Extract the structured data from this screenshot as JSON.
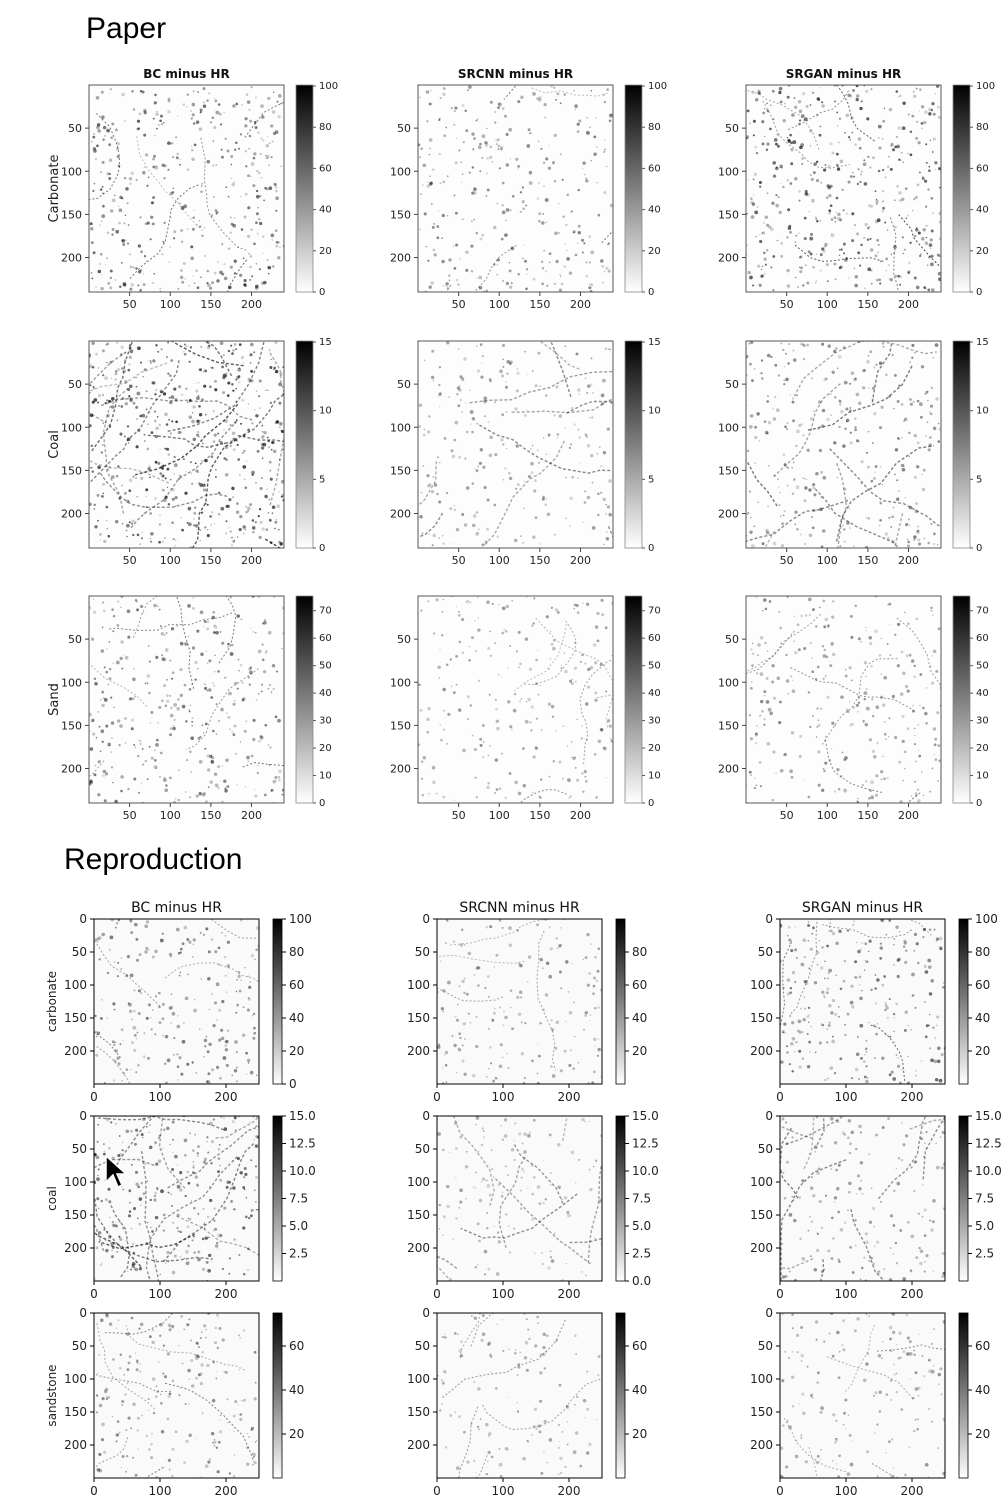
{
  "sections": [
    {
      "heading": "Paper",
      "style": "paper",
      "column_titles": [
        "BC minus HR",
        "SRCNN minus HR",
        "SRGAN minus HR"
      ],
      "rows": [
        {
          "label": "Carbonate",
          "texture": "carbonate",
          "x_ticks": [
            50,
            100,
            150,
            200
          ],
          "y_ticks": [
            50,
            100,
            150,
            200
          ],
          "colorbar": {
            "range": [
              0,
              100
            ],
            "ticks": [
              "0",
              "20",
              "40",
              "60",
              "80",
              "100"
            ]
          }
        },
        {
          "label": "Coal",
          "texture": "coal",
          "x_ticks": [
            50,
            100,
            150,
            200
          ],
          "y_ticks": [
            50,
            100,
            150,
            200
          ],
          "colorbar": {
            "range": [
              0,
              15
            ],
            "ticks": [
              "0",
              "5",
              "10",
              "15"
            ]
          }
        },
        {
          "label": "Sand",
          "texture": "sand",
          "x_ticks": [
            50,
            100,
            150,
            200
          ],
          "y_ticks": [
            50,
            100,
            150,
            200
          ],
          "colorbar": {
            "range": [
              0,
              75
            ],
            "ticks": [
              "0",
              "10",
              "20",
              "30",
              "40",
              "50",
              "60",
              "70"
            ]
          }
        }
      ]
    },
    {
      "heading": "Reproduction",
      "style": "repro",
      "column_titles": [
        "BC minus HR",
        "SRCNN minus HR",
        "SRGAN minus HR"
      ],
      "rows": [
        {
          "label": "carbonate",
          "texture": "carbonate",
          "x_ticks": [
            0,
            100,
            200
          ],
          "y_ticks": [
            0,
            50,
            100,
            150,
            200
          ],
          "colorbars": [
            {
              "range": [
                0,
                100
              ],
              "ticks": [
                "0",
                "20",
                "40",
                "60",
                "80",
                "100"
              ]
            },
            {
              "range": [
                0,
                100
              ],
              "ticks": [
                "20",
                "40",
                "60",
                "80"
              ]
            },
            {
              "range": [
                0,
                100
              ],
              "ticks": [
                "20",
                "40",
                "60",
                "80",
                "100"
              ]
            }
          ]
        },
        {
          "label": "coal",
          "texture": "coal",
          "x_ticks": [
            0,
            100,
            200
          ],
          "y_ticks": [
            0,
            50,
            100,
            150,
            200
          ],
          "colorbars": [
            {
              "range": [
                0,
                15
              ],
              "ticks": [
                "2.5",
                "5.0",
                "7.5",
                "10.0",
                "12.5",
                "15.0"
              ]
            },
            {
              "range": [
                0,
                15
              ],
              "ticks": [
                "0.0",
                "2.5",
                "5.0",
                "7.5",
                "10.0",
                "12.5",
                "15.0"
              ]
            },
            {
              "range": [
                0,
                15
              ],
              "ticks": [
                "2.5",
                "5.0",
                "7.5",
                "10.0",
                "12.5",
                "15.0"
              ]
            }
          ]
        },
        {
          "label": "sandstone",
          "texture": "sand",
          "x_ticks": [
            0,
            100,
            200
          ],
          "y_ticks": [
            0,
            50,
            100,
            150,
            200
          ],
          "colorbars": [
            {
              "range": [
                0,
                75
              ],
              "ticks": [
                "20",
                "40",
                "60"
              ]
            },
            {
              "range": [
                0,
                75
              ],
              "ticks": [
                "20",
                "40",
                "60"
              ]
            },
            {
              "range": [
                0,
                75
              ],
              "ticks": [
                "20",
                "40",
                "60"
              ]
            }
          ]
        }
      ]
    }
  ],
  "chart_data": [
    {
      "type": "heatmap",
      "group": "Paper",
      "row": "Carbonate",
      "columns": [
        "BC minus HR",
        "SRCNN minus HR",
        "SRGAN minus HR"
      ],
      "xlim": [
        0,
        240
      ],
      "ylim": [
        240,
        0
      ],
      "colorbar_range": [
        0,
        100
      ],
      "colormap": "gray_r"
    },
    {
      "type": "heatmap",
      "group": "Paper",
      "row": "Coal",
      "columns": [
        "BC minus HR",
        "SRCNN minus HR",
        "SRGAN minus HR"
      ],
      "xlim": [
        0,
        240
      ],
      "ylim": [
        240,
        0
      ],
      "colorbar_range": [
        0,
        15
      ],
      "colormap": "gray_r"
    },
    {
      "type": "heatmap",
      "group": "Paper",
      "row": "Sand",
      "columns": [
        "BC minus HR",
        "SRCNN minus HR",
        "SRGAN minus HR"
      ],
      "xlim": [
        0,
        240
      ],
      "ylim": [
        240,
        0
      ],
      "colorbar_range": [
        0,
        75
      ],
      "colormap": "gray_r"
    },
    {
      "type": "heatmap",
      "group": "Reproduction",
      "row": "carbonate",
      "columns": [
        "BC minus HR",
        "SRCNN minus HR",
        "SRGAN minus HR"
      ],
      "xlim": [
        0,
        250
      ],
      "ylim": [
        250,
        0
      ],
      "colorbar_range": [
        0,
        100
      ],
      "colormap": "gray_r"
    },
    {
      "type": "heatmap",
      "group": "Reproduction",
      "row": "coal",
      "columns": [
        "BC minus HR",
        "SRCNN minus HR",
        "SRGAN minus HR"
      ],
      "xlim": [
        0,
        250
      ],
      "ylim": [
        250,
        0
      ],
      "colorbar_range": [
        0,
        15
      ],
      "colormap": "gray_r"
    },
    {
      "type": "heatmap",
      "group": "Reproduction",
      "row": "sandstone",
      "columns": [
        "BC minus HR",
        "SRCNN minus HR",
        "SRGAN minus HR"
      ],
      "xlim": [
        0,
        250
      ],
      "ylim": [
        250,
        0
      ],
      "colorbar_range": [
        0,
        75
      ],
      "colormap": "gray_r"
    }
  ]
}
